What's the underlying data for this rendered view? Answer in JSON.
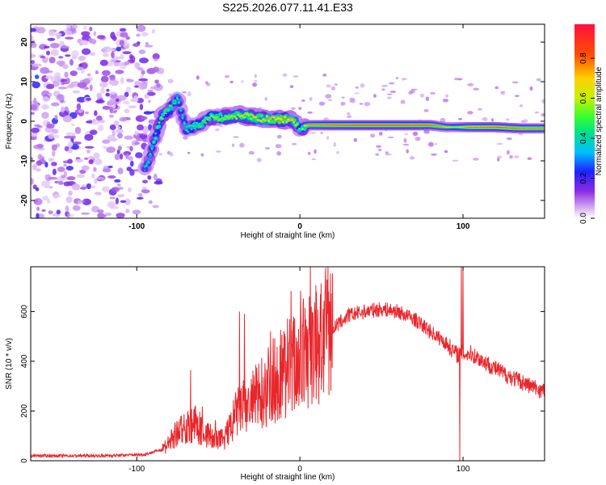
{
  "chart_data": [
    {
      "type": "heatmap",
      "title": "S225.2026.077.11.41.E33",
      "xlabel": "Height of straight line (km)",
      "ylabel": "Frequency (Hz)",
      "xlim": [
        -165,
        150
      ],
      "ylim": [
        -24.5,
        24.5
      ],
      "x_ticks": [
        "-100",
        "0",
        "100"
      ],
      "y_ticks": [
        "20",
        "10",
        "0",
        "-10",
        "-20"
      ],
      "colorbar": {
        "label": "Normalized spectral amplitude",
        "range": [
          0,
          0.97
        ],
        "ticks": [
          "0.0",
          "0.2",
          "0.4",
          "0.6",
          "0.8"
        ],
        "colors": [
          "#ffffff",
          "#d9b3f5",
          "#8a2be2",
          "#2020ff",
          "#00c0ff",
          "#00e08a",
          "#33ff33",
          "#c8f000",
          "#ffd000",
          "#ff5000",
          "#ff1040"
        ]
      },
      "ridge": [
        {
          "x": -95,
          "y": -12,
          "a": 0.45
        },
        {
          "x": -92,
          "y": -9,
          "a": 0.5
        },
        {
          "x": -88,
          "y": -3,
          "a": 0.55
        },
        {
          "x": -85,
          "y": 1,
          "a": 0.6
        },
        {
          "x": -80,
          "y": 3,
          "a": 0.55
        },
        {
          "x": -75,
          "y": 6,
          "a": 0.5
        },
        {
          "x": -70,
          "y": -2,
          "a": 0.5
        },
        {
          "x": -62,
          "y": -1,
          "a": 0.55
        },
        {
          "x": -55,
          "y": 1,
          "a": 0.6
        },
        {
          "x": -45,
          "y": 1,
          "a": 0.65
        },
        {
          "x": -38,
          "y": 1.5,
          "a": 0.7
        },
        {
          "x": -30,
          "y": 1,
          "a": 0.7
        },
        {
          "x": -20,
          "y": 0.5,
          "a": 0.75
        },
        {
          "x": -10,
          "y": 0.5,
          "a": 0.8
        },
        {
          "x": -3,
          "y": 0,
          "a": 0.75
        },
        {
          "x": 0,
          "y": -2,
          "a": 0.5
        },
        {
          "x": 5,
          "y": -1,
          "a": 0.8
        },
        {
          "x": 20,
          "y": -1,
          "a": 0.9
        },
        {
          "x": 40,
          "y": -1,
          "a": 0.92
        },
        {
          "x": 60,
          "y": -1,
          "a": 0.92
        },
        {
          "x": 80,
          "y": -1,
          "a": 0.9
        },
        {
          "x": 90,
          "y": -1.5,
          "a": 0.7
        },
        {
          "x": 95,
          "y": -1.5,
          "a": 0.6
        },
        {
          "x": 105,
          "y": -1.5,
          "a": 0.85
        },
        {
          "x": 120,
          "y": -1.5,
          "a": 0.9
        },
        {
          "x": 135,
          "y": -1.8,
          "a": 0.85
        },
        {
          "x": 150,
          "y": -1.8,
          "a": 0.8
        }
      ]
    },
    {
      "type": "line",
      "xlabel": "Height of straight line (km)",
      "ylabel": "SNR (10 * v/v)",
      "xlim": [
        -165,
        150
      ],
      "ylim": [
        0,
        780
      ],
      "x_ticks": [
        "-100",
        "0",
        "100"
      ],
      "y_ticks": [
        "0",
        "200",
        "400",
        "600"
      ],
      "line_color": "#e8272c",
      "envelope": [
        {
          "x": -165,
          "y": 20
        },
        {
          "x": -120,
          "y": 20
        },
        {
          "x": -95,
          "y": 25
        },
        {
          "x": -85,
          "y": 45
        },
        {
          "x": -78,
          "y": 90
        },
        {
          "x": -72,
          "y": 130
        },
        {
          "x": -65,
          "y": 150
        },
        {
          "x": -58,
          "y": 110
        },
        {
          "x": -50,
          "y": 80
        },
        {
          "x": -45,
          "y": 100
        },
        {
          "x": -38,
          "y": 200
        },
        {
          "x": -30,
          "y": 230
        },
        {
          "x": -20,
          "y": 300
        },
        {
          "x": -10,
          "y": 360
        },
        {
          "x": 0,
          "y": 410
        },
        {
          "x": 10,
          "y": 460
        },
        {
          "x": 20,
          "y": 530
        },
        {
          "x": 30,
          "y": 585
        },
        {
          "x": 40,
          "y": 600
        },
        {
          "x": 50,
          "y": 610
        },
        {
          "x": 60,
          "y": 600
        },
        {
          "x": 70,
          "y": 570
        },
        {
          "x": 80,
          "y": 520
        },
        {
          "x": 90,
          "y": 470
        },
        {
          "x": 96,
          "y": 430
        },
        {
          "x": 105,
          "y": 430
        },
        {
          "x": 115,
          "y": 390
        },
        {
          "x": 125,
          "y": 350
        },
        {
          "x": 135,
          "y": 320
        },
        {
          "x": 145,
          "y": 290
        },
        {
          "x": 150,
          "y": 280
        }
      ],
      "spikes": [
        {
          "x": -67,
          "y": 365
        },
        {
          "x": -37,
          "y": 600
        },
        {
          "x": -34,
          "y": 590
        },
        {
          "x": -18,
          "y": 520
        },
        {
          "x": 6,
          "y": 600
        },
        {
          "x": 8,
          "y": 590
        },
        {
          "x": 17,
          "y": 590
        },
        {
          "x": 99,
          "y": 780
        },
        {
          "x": 100,
          "y": 770
        },
        {
          "x": 98,
          "y": 0
        }
      ]
    }
  ]
}
